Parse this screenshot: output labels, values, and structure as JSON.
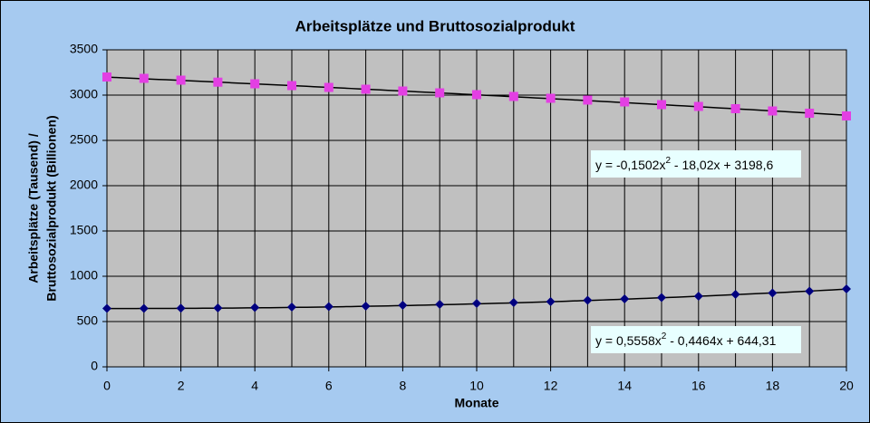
{
  "chart_data": {
    "type": "scatter",
    "title": "Arbeitsplätze und Bruttosozialprodukt",
    "x_label": "Monate",
    "y_label": [
      "Arbeitsplätze (Tausend) /",
      "Bruttosozialprodukt (Billionen)"
    ],
    "x": [
      0,
      1,
      2,
      3,
      4,
      5,
      6,
      7,
      8,
      9,
      10,
      11,
      12,
      13,
      14,
      15,
      16,
      17,
      18,
      19,
      20
    ],
    "series": [
      {
        "marker": "square",
        "color": "#e33fe3",
        "values": [
          3200,
          3185,
          3165,
          3143,
          3125,
          3105,
          3085,
          3065,
          3045,
          3025,
          3005,
          2985,
          2965,
          2945,
          2925,
          2895,
          2875,
          2850,
          2825,
          2800,
          2770
        ],
        "trendline": {
          "coefficients": [
            -0.1502,
            -18.02,
            3198.6
          ],
          "label_parts": [
            "y = -0,1502x",
            "2",
            " - 18,02x + 3198,6"
          ]
        }
      },
      {
        "marker": "diamond",
        "color": "#000080",
        "values": [
          645,
          645,
          648,
          650,
          655,
          660,
          665,
          670,
          680,
          690,
          700,
          710,
          720,
          735,
          750,
          765,
          780,
          800,
          815,
          835,
          860
        ],
        "trendline": {
          "coefficients": [
            0.5558,
            -0.4464,
            644.31
          ],
          "label_parts": [
            "y = 0,5558x",
            "2",
            " - 0,4464x + 644,31"
          ]
        }
      }
    ],
    "xlim": [
      0,
      20
    ],
    "xticks": [
      0,
      2,
      4,
      6,
      8,
      10,
      12,
      14,
      16,
      18,
      20
    ],
    "xgrid": [
      0,
      1,
      2,
      3,
      4,
      5,
      6,
      7,
      8,
      9,
      10,
      11,
      12,
      13,
      14,
      15,
      16,
      17,
      18,
      19,
      20
    ],
    "ylim": [
      0,
      3500
    ],
    "yticks": [
      0,
      500,
      1000,
      1500,
      2000,
      2500,
      3000,
      3500
    ],
    "grid": true
  }
}
